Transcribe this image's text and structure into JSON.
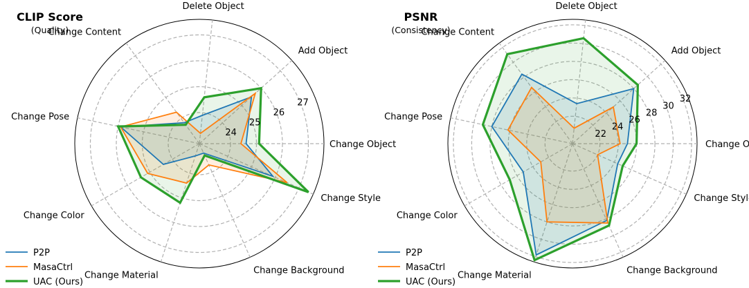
{
  "chart_data": [
    {
      "type": "radar",
      "title": "CLIP Score",
      "subtitle": "(Quality)",
      "categories": [
        "Change Object",
        "Add Object",
        "Delete Object",
        "Change Content",
        "Change Pose",
        "Change Color",
        "Change Material",
        "Change Background",
        "Change Style"
      ],
      "tick_labels": [
        "24",
        "25",
        "26",
        "27"
      ],
      "rlim": [
        22.8,
        27.6
      ],
      "series": [
        {
          "name": "P2P",
          "values": [
            24.6,
            25.5,
            23.9,
            23.8,
            25.9,
            24.4,
            23.3,
            23.2,
            25.9
          ]
        },
        {
          "name": "MasaCtrl",
          "values": [
            24.4,
            25.7,
            23.2,
            24.3,
            25.9,
            25.1,
            24.4,
            23.7,
            26.5
          ]
        },
        {
          "name": "UAC (Ours)",
          "values": [
            25.1,
            26.0,
            24.6,
            23.7,
            26.0,
            25.4,
            25.2,
            23.3,
            27.4
          ]
        }
      ],
      "grid": true,
      "legend_placement": "bottom-left"
    },
    {
      "type": "radar",
      "title": "PSNR",
      "subtitle": "(Consistency)",
      "categories": [
        "Change Object",
        "Add Object",
        "Delete Object",
        "Change Content",
        "Change Pose",
        "Change Color",
        "Change Material",
        "Change Background",
        "Change Style"
      ],
      "tick_labels": [
        "22",
        "24",
        "26",
        "28",
        "30",
        "32"
      ],
      "rlim": [
        19,
        32.6
      ],
      "series": [
        {
          "name": "P2P",
          "values": [
            25.0,
            28.0,
            23.4,
            28.4,
            28.0,
            25.2,
            31.8,
            28.2,
            24.4
          ]
        },
        {
          "name": "MasaCtrl",
          "values": [
            24.2,
            25.0,
            20.7,
            26.6,
            26.2,
            23.0,
            28.0,
            28.5,
            22.0
          ]
        },
        {
          "name": "UAC (Ours)",
          "values": [
            26.0,
            28.6,
            30.6,
            31.1,
            29.0,
            26.9,
            32.4,
            28.8,
            25.0
          ]
        }
      ],
      "grid": true,
      "legend_placement": "bottom-left"
    }
  ],
  "colors": {
    "P2P": "#1f77b4",
    "MasaCtrl": "#ff7f0e",
    "UAC (Ours)": "#2ca02c",
    "grid": "#b0b0b0"
  }
}
